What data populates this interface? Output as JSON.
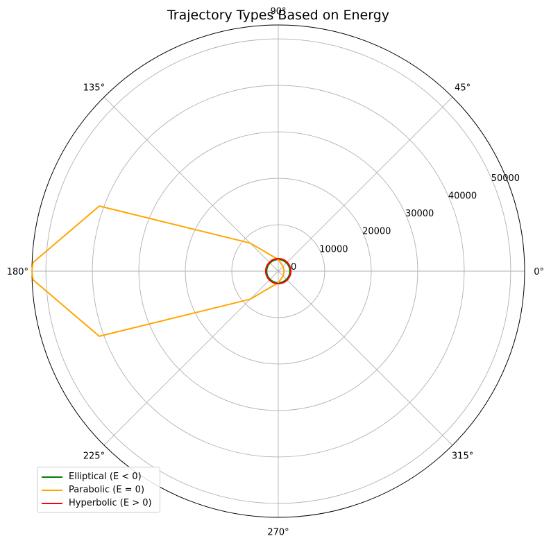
{
  "chart_data": {
    "type": "polar-line",
    "title": "Trajectory Types Based on Energy",
    "theta_unit": "degrees",
    "theta_ticks": [
      "0°",
      "45°",
      "90°",
      "135°",
      "180°",
      "225°",
      "270°",
      "315°"
    ],
    "r_ticks": [
      "0",
      "10000",
      "20000",
      "30000",
      "40000",
      "50000"
    ],
    "rlim": [
      0,
      53000
    ],
    "grid": true,
    "legend_position": "lower-left",
    "series": [
      {
        "name": "Elliptical (E < 0)",
        "color": "#008000",
        "shape": "circle",
        "r_const": 2500,
        "points": []
      },
      {
        "name": "Parabolic (E = 0)",
        "color": "#ffa500",
        "shape": "path",
        "points": [
          {
            "theta": 0,
            "r": 1250
          },
          {
            "theta": 45,
            "r": 1463
          },
          {
            "theta": 90,
            "r": 2500
          },
          {
            "theta": 135,
            "r": 8536
          },
          {
            "theta": 160,
            "r": 40980
          },
          {
            "theta": 178,
            "r": 52800
          },
          {
            "theta": 180,
            "r": 53000
          },
          {
            "theta": 182,
            "r": 52800
          },
          {
            "theta": 200,
            "r": 40980
          },
          {
            "theta": 225,
            "r": 8536
          },
          {
            "theta": 270,
            "r": 2500
          },
          {
            "theta": 315,
            "r": 1463
          },
          {
            "theta": 360,
            "r": 1250
          }
        ]
      },
      {
        "name": "Hyperbolic (E > 0)",
        "color": "#ff0000",
        "shape": "circle",
        "r_const": 2700,
        "points": []
      }
    ]
  }
}
